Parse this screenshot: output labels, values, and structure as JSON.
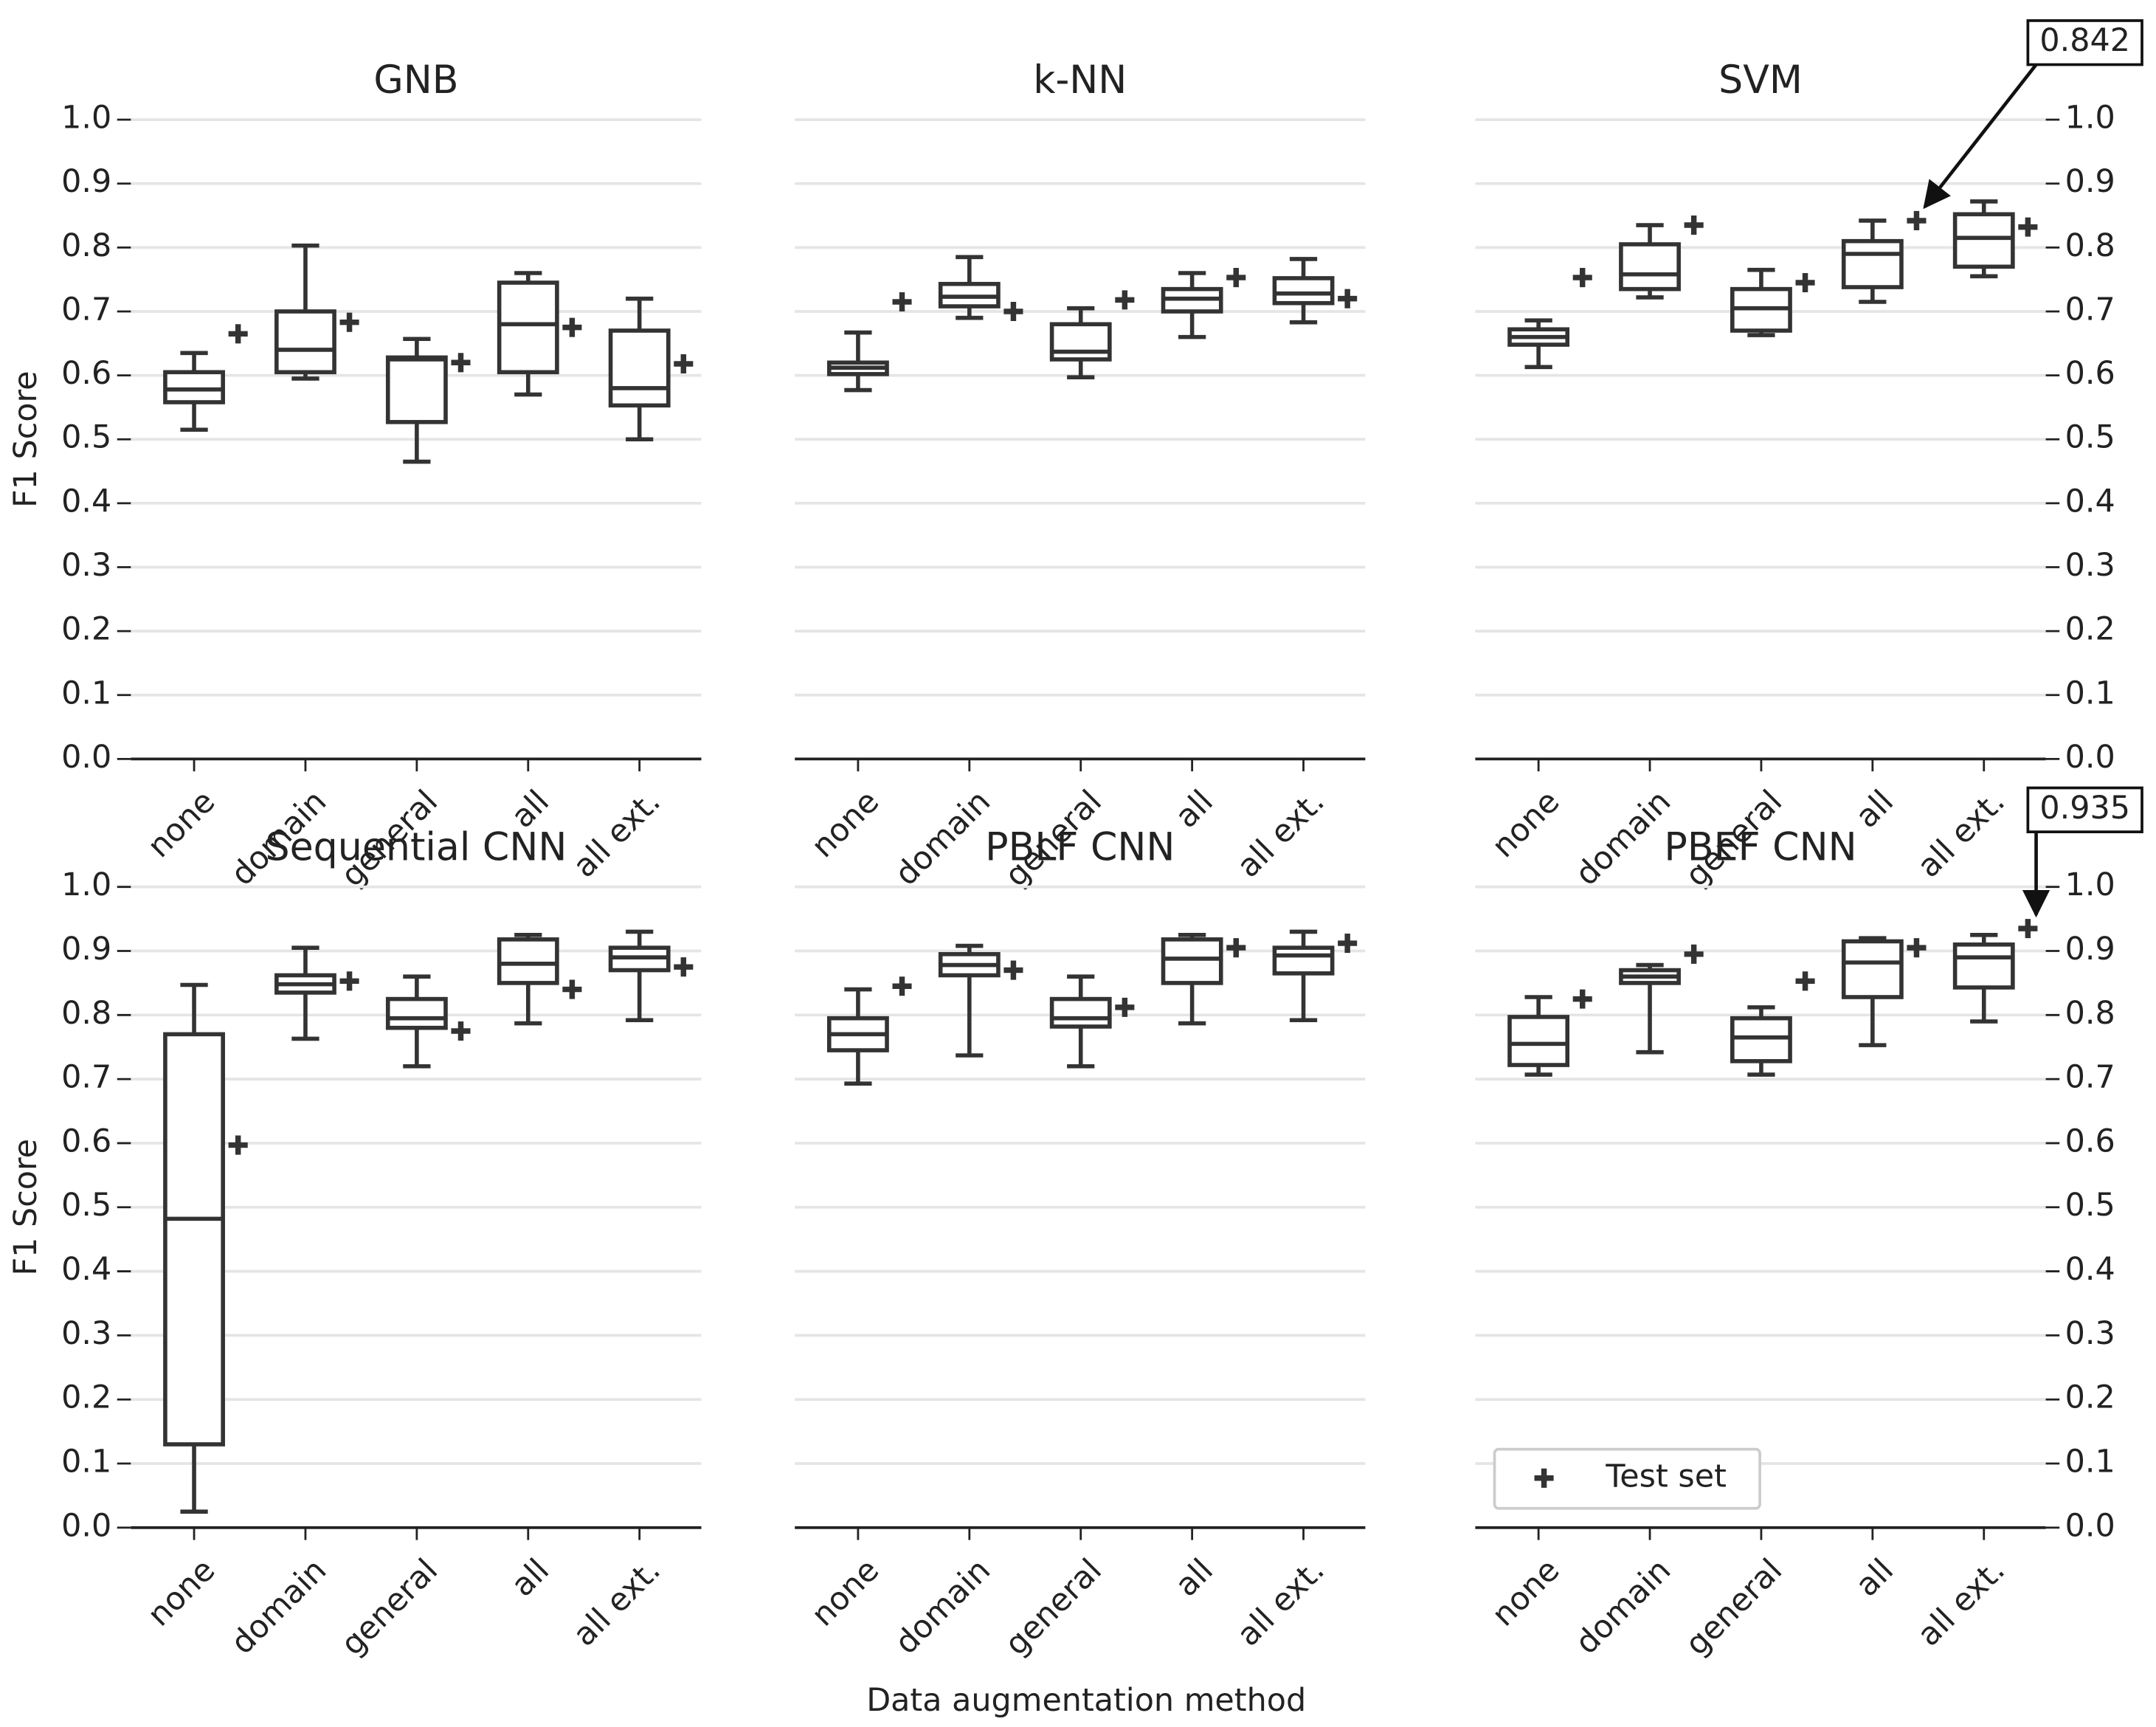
{
  "xlabel": "Data augmentation method",
  "chart_data": [
    {
      "type": "box",
      "title": "GNB",
      "ylabel": "F1 Score",
      "yaxis": "left",
      "categories": [
        "none",
        "domain",
        "general",
        "all",
        "all ext."
      ],
      "whislo": [
        0.515,
        0.595,
        0.465,
        0.57,
        0.5
      ],
      "q1": [
        0.558,
        0.605,
        0.527,
        0.605,
        0.553
      ],
      "med": [
        0.578,
        0.64,
        0.625,
        0.68,
        0.58
      ],
      "q3": [
        0.605,
        0.7,
        0.628,
        0.745,
        0.67
      ],
      "whishi": [
        0.635,
        0.803,
        0.657,
        0.76,
        0.72
      ],
      "test": {
        "name": "Test set",
        "values": [
          0.665,
          0.683,
          0.62,
          0.675,
          0.618
        ]
      },
      "ylim": [
        0,
        1.0
      ],
      "yticks": [
        {
          "value": 0,
          "label": "0.0"
        },
        0.1,
        0.2,
        0.3,
        0.4,
        0.5,
        0.6,
        0.7,
        0.8,
        0.9,
        {
          "value": 1.0,
          "label": "1.0"
        }
      ],
      "grid": true,
      "color": "#333333"
    },
    {
      "type": "box",
      "title": "k-NN",
      "yaxis": "hidden",
      "categories": [
        "none",
        "domain",
        "general",
        "all",
        "all ext."
      ],
      "whislo": [
        0.577,
        0.69,
        0.597,
        0.66,
        0.683
      ],
      "q1": [
        0.602,
        0.708,
        0.625,
        0.7,
        0.713
      ],
      "med": [
        0.612,
        0.723,
        0.637,
        0.72,
        0.728
      ],
      "q3": [
        0.62,
        0.743,
        0.68,
        0.735,
        0.752
      ],
      "whishi": [
        0.667,
        0.785,
        0.705,
        0.76,
        0.782
      ],
      "test": {
        "name": "Test set",
        "values": [
          0.715,
          0.7,
          0.718,
          0.753,
          0.72
        ]
      },
      "ylim": [
        0,
        1.0
      ],
      "yticks": [
        {
          "value": 0,
          "label": "0.0"
        },
        0.1,
        0.2,
        0.3,
        0.4,
        0.5,
        0.6,
        0.7,
        0.8,
        0.9,
        {
          "value": 1.0,
          "label": "1.0"
        }
      ],
      "grid": true,
      "color": "#333333"
    },
    {
      "type": "box",
      "title": "SVM",
      "yaxis": "right",
      "categories": [
        "none",
        "domain",
        "general",
        "all",
        "all ext."
      ],
      "whislo": [
        0.613,
        0.722,
        0.663,
        0.715,
        0.755
      ],
      "q1": [
        0.648,
        0.735,
        0.67,
        0.738,
        0.77
      ],
      "med": [
        0.66,
        0.758,
        0.705,
        0.79,
        0.815
      ],
      "q3": [
        0.672,
        0.805,
        0.735,
        0.81,
        0.852
      ],
      "whishi": [
        0.686,
        0.835,
        0.765,
        0.842,
        0.872
      ],
      "test": {
        "name": "Test set",
        "values": [
          0.753,
          0.835,
          0.745,
          0.842,
          0.832
        ]
      },
      "annotation": {
        "value": 0.842,
        "label": "0.842"
      },
      "ylim": [
        0,
        1.0
      ],
      "yticks": [
        {
          "value": 0,
          "label": "0.0"
        },
        0.1,
        0.2,
        0.3,
        0.4,
        0.5,
        0.6,
        0.7,
        0.8,
        0.9,
        {
          "value": 1.0,
          "label": "1.0"
        }
      ],
      "grid": true,
      "color": "#333333"
    },
    {
      "type": "box",
      "title": "Sequential CNN",
      "ylabel": "F1 Score",
      "yaxis": "left",
      "categories": [
        "none",
        "domain",
        "general",
        "all",
        "all ext."
      ],
      "whislo": [
        0.025,
        0.763,
        0.72,
        0.787,
        0.792
      ],
      "q1": [
        0.13,
        0.835,
        0.78,
        0.85,
        0.87
      ],
      "med": [
        0.482,
        0.848,
        0.795,
        0.88,
        0.89
      ],
      "q3": [
        0.77,
        0.862,
        0.825,
        0.918,
        0.905
      ],
      "whishi": [
        0.847,
        0.905,
        0.86,
        0.925,
        0.93
      ],
      "test": {
        "name": "Test set",
        "values": [
          0.597,
          0.853,
          0.775,
          0.84,
          0.875
        ]
      },
      "ylim": [
        0,
        1.0
      ],
      "yticks": [
        {
          "value": 0,
          "label": "0.0"
        },
        0.1,
        0.2,
        0.3,
        0.4,
        0.5,
        0.6,
        0.7,
        0.8,
        0.9,
        {
          "value": 1.0,
          "label": "1.0"
        }
      ],
      "grid": true,
      "color": "#333333"
    },
    {
      "type": "box",
      "title": "PBLF CNN",
      "yaxis": "hidden",
      "categories": [
        "none",
        "domain",
        "general",
        "all",
        "all ext."
      ],
      "whislo": [
        0.693,
        0.737,
        0.72,
        0.787,
        0.792
      ],
      "q1": [
        0.745,
        0.862,
        0.782,
        0.85,
        0.865
      ],
      "med": [
        0.77,
        0.878,
        0.795,
        0.888,
        0.893
      ],
      "q3": [
        0.795,
        0.895,
        0.825,
        0.918,
        0.905
      ],
      "whishi": [
        0.84,
        0.908,
        0.86,
        0.925,
        0.93
      ],
      "test": {
        "name": "Test set",
        "values": [
          0.845,
          0.87,
          0.812,
          0.905,
          0.912
        ]
      },
      "ylim": [
        0,
        1.0
      ],
      "yticks": [
        {
          "value": 0,
          "label": "0.0"
        },
        0.1,
        0.2,
        0.3,
        0.4,
        0.5,
        0.6,
        0.7,
        0.8,
        0.9,
        {
          "value": 1.0,
          "label": "1.0"
        }
      ],
      "grid": true,
      "color": "#333333"
    },
    {
      "type": "box",
      "title": "PBEF CNN",
      "yaxis": "right",
      "legend": "lower left",
      "categories": [
        "none",
        "domain",
        "general",
        "all",
        "all ext."
      ],
      "whislo": [
        0.707,
        0.742,
        0.707,
        0.753,
        0.79
      ],
      "q1": [
        0.722,
        0.85,
        0.728,
        0.828,
        0.843
      ],
      "med": [
        0.755,
        0.86,
        0.765,
        0.882,
        0.89
      ],
      "q3": [
        0.797,
        0.87,
        0.795,
        0.915,
        0.91
      ],
      "whishi": [
        0.828,
        0.878,
        0.812,
        0.92,
        0.925
      ],
      "test": {
        "name": "Test set",
        "values": [
          0.825,
          0.895,
          0.853,
          0.905,
          0.935
        ]
      },
      "annotation": {
        "value": 0.935,
        "label": "0.935"
      },
      "ylim": [
        0,
        1.0
      ],
      "yticks": [
        {
          "value": 0,
          "label": "0.0"
        },
        0.1,
        0.2,
        0.3,
        0.4,
        0.5,
        0.6,
        0.7,
        0.8,
        0.9,
        {
          "value": 1.0,
          "label": "1.0"
        }
      ],
      "grid": true,
      "color": "#333333"
    }
  ]
}
